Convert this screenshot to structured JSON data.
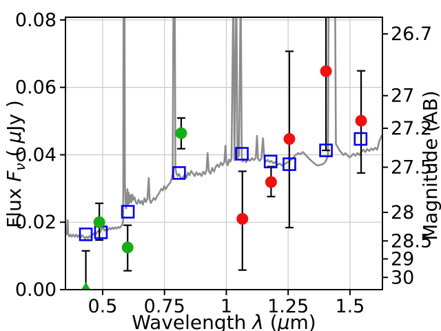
{
  "chart_data": {
    "type": "scatter",
    "title": "",
    "xlabel_parts": [
      {
        "t": "Wavelength "
      },
      {
        "t": "λ",
        "i": 1
      },
      {
        "t": " ("
      },
      {
        "t": "μ",
        "i": 1
      },
      {
        "t": "m)"
      }
    ],
    "ylabel_parts": [
      {
        "t": "Flux "
      },
      {
        "t": "F",
        "i": 1
      },
      {
        "t": "ν",
        "i": 1,
        "s": 1
      },
      {
        "t": " ( "
      },
      {
        "t": "μ",
        "i": 1
      },
      {
        "t": "Jy )"
      }
    ],
    "y2label": "Magnitude (AB)",
    "xlim": [
      0.3496,
      1.6312
    ],
    "ylim": [
      0,
      0.0808
    ],
    "grid": true,
    "legend": "none",
    "x_ticks": [
      {
        "v": 0.5,
        "label": "0.5"
      },
      {
        "v": 0.75,
        "label": "0.75"
      },
      {
        "v": 1.0,
        "label": "1"
      },
      {
        "v": 1.25,
        "label": "1.25"
      },
      {
        "v": 1.5,
        "label": "1.5"
      }
    ],
    "y_ticks": [
      {
        "v": 0.0,
        "label": "0.00"
      },
      {
        "v": 0.02,
        "label": "0.02"
      },
      {
        "v": 0.04,
        "label": "0.04"
      },
      {
        "v": 0.06,
        "label": "0.06"
      },
      {
        "v": 0.08,
        "label": "0.08"
      }
    ],
    "y2_ticks": [
      {
        "label": "26.7",
        "flux": 0.07585
      },
      {
        "label": "27",
        "flux": 0.05754
      },
      {
        "label": "27.2",
        "flux": 0.04786
      },
      {
        "label": "27.5",
        "flux": 0.03631
      },
      {
        "label": "28",
        "flux": 0.02291
      },
      {
        "label": "28.5",
        "flux": 0.01445
      },
      {
        "label": "29",
        "flux": 0.00912
      },
      {
        "label": "30",
        "flux": 0.00363
      }
    ],
    "colors": {
      "spectrum": "#8c8c8c",
      "grid": "#cccccc",
      "green": "#17ad17",
      "red": "#ee1111",
      "blue": "#0000ee",
      "errorbar": "#000000",
      "frame": "#000000"
    },
    "green_circles": [
      {
        "x": 0.4865,
        "y": 0.02,
        "lo": 0.0147,
        "hi": 0.0256
      },
      {
        "x": 0.601,
        "y": 0.0125,
        "lo": 0.0056,
        "hi": 0.0191
      },
      {
        "x": 0.8175,
        "y": 0.0464,
        "lo": 0.0418,
        "hi": 0.0509
      }
    ],
    "green_upper_limit": {
      "x": 0.432,
      "y": 0.0006,
      "hi": 0.0115
    },
    "blue_squares": [
      {
        "x": 0.432,
        "y": 0.0164
      },
      {
        "x": 0.493,
        "y": 0.017
      },
      {
        "x": 0.602,
        "y": 0.0231
      },
      {
        "x": 0.809,
        "y": 0.0346
      },
      {
        "x": 1.063,
        "y": 0.0403
      },
      {
        "x": 1.179,
        "y": 0.038
      },
      {
        "x": 1.255,
        "y": 0.0372
      },
      {
        "x": 1.403,
        "y": 0.0413
      },
      {
        "x": 1.543,
        "y": 0.0447
      }
    ],
    "red_circles": [
      {
        "x": 1.065,
        "y": 0.021,
        "lo": 0.0058,
        "hi": 0.0351
      },
      {
        "x": 1.181,
        "y": 0.0319,
        "lo": 0.0276,
        "hi": 0.0365
      },
      {
        "x": 1.255,
        "y": 0.0447,
        "lo": 0.0184,
        "hi": 0.0707
      },
      {
        "x": 1.403,
        "y": 0.0648,
        "lo": 0.0413,
        "hi": 0.082
      },
      {
        "x": 1.545,
        "y": 0.0501,
        "lo": 0.0346,
        "hi": 0.0649
      }
    ],
    "spectrum": [
      [
        0.352,
        0.0162
      ],
      [
        0.3555,
        0.0168
      ],
      [
        0.3585,
        0.0206
      ],
      [
        0.361,
        0.0163
      ],
      [
        0.365,
        0.0158
      ],
      [
        0.37,
        0.0163
      ],
      [
        0.375,
        0.0157
      ],
      [
        0.381,
        0.0163
      ],
      [
        0.387,
        0.0157
      ],
      [
        0.393,
        0.0163
      ],
      [
        0.399,
        0.0156
      ],
      [
        0.405,
        0.0161
      ],
      [
        0.411,
        0.0155
      ],
      [
        0.417,
        0.0161
      ],
      [
        0.423,
        0.0157
      ],
      [
        0.429,
        0.0151
      ],
      [
        0.435,
        0.0157
      ],
      [
        0.441,
        0.0153
      ],
      [
        0.447,
        0.0159
      ],
      [
        0.453,
        0.0155
      ],
      [
        0.459,
        0.0162
      ],
      [
        0.465,
        0.0167
      ],
      [
        0.471,
        0.0163
      ],
      [
        0.477,
        0.017
      ],
      [
        0.483,
        0.0174
      ],
      [
        0.489,
        0.0169
      ],
      [
        0.495,
        0.018
      ],
      [
        0.5,
        0.0191
      ],
      [
        0.504,
        0.0179
      ],
      [
        0.509,
        0.0175
      ],
      [
        0.515,
        0.0181
      ],
      [
        0.521,
        0.0177
      ],
      [
        0.527,
        0.0183
      ],
      [
        0.533,
        0.0179
      ],
      [
        0.539,
        0.0184
      ],
      [
        0.545,
        0.018
      ],
      [
        0.551,
        0.0185
      ],
      [
        0.557,
        0.0181
      ],
      [
        0.563,
        0.0186
      ],
      [
        0.569,
        0.0183
      ],
      [
        0.575,
        0.0189
      ],
      [
        0.58,
        0.0193
      ],
      [
        0.583,
        0.0207
      ],
      [
        0.5845,
        0.09
      ],
      [
        0.5885,
        0.09
      ],
      [
        0.59,
        0.0312
      ],
      [
        0.5925,
        0.0262
      ],
      [
        0.595,
        0.0241
      ],
      [
        0.5975,
        0.0266
      ],
      [
        0.6,
        0.0298
      ],
      [
        0.6025,
        0.0252
      ],
      [
        0.605,
        0.0288
      ],
      [
        0.608,
        0.0257
      ],
      [
        0.612,
        0.028
      ],
      [
        0.616,
        0.0259
      ],
      [
        0.62,
        0.0282
      ],
      [
        0.624,
        0.0266
      ],
      [
        0.629,
        0.0274
      ],
      [
        0.634,
        0.0259
      ],
      [
        0.639,
        0.0254
      ],
      [
        0.645,
        0.0267
      ],
      [
        0.651,
        0.0256
      ],
      [
        0.657,
        0.0263
      ],
      [
        0.663,
        0.0252
      ],
      [
        0.669,
        0.0271
      ],
      [
        0.675,
        0.026
      ],
      [
        0.681,
        0.027
      ],
      [
        0.6865,
        0.0331
      ],
      [
        0.69,
        0.0267
      ],
      [
        0.695,
        0.0257
      ],
      [
        0.701,
        0.0265
      ],
      [
        0.707,
        0.0272
      ],
      [
        0.713,
        0.0266
      ],
      [
        0.719,
        0.0276
      ],
      [
        0.725,
        0.0283
      ],
      [
        0.731,
        0.029
      ],
      [
        0.737,
        0.0299
      ],
      [
        0.743,
        0.0294
      ],
      [
        0.749,
        0.0307
      ],
      [
        0.755,
        0.0298
      ],
      [
        0.761,
        0.0306
      ],
      [
        0.767,
        0.0312
      ],
      [
        0.773,
        0.0317
      ],
      [
        0.779,
        0.0329
      ],
      [
        0.783,
        0.0346
      ],
      [
        0.7865,
        0.09
      ],
      [
        0.7915,
        0.09
      ],
      [
        0.794,
        0.036
      ],
      [
        0.798,
        0.0346
      ],
      [
        0.803,
        0.0337
      ],
      [
        0.809,
        0.0343
      ],
      [
        0.815,
        0.0333
      ],
      [
        0.821,
        0.0329
      ],
      [
        0.827,
        0.0336
      ],
      [
        0.833,
        0.0342
      ],
      [
        0.839,
        0.0333
      ],
      [
        0.845,
        0.0347
      ],
      [
        0.851,
        0.0339
      ],
      [
        0.858,
        0.0352
      ],
      [
        0.865,
        0.0344
      ],
      [
        0.872,
        0.0337
      ],
      [
        0.879,
        0.0348
      ],
      [
        0.886,
        0.034
      ],
      [
        0.893,
        0.0345
      ],
      [
        0.9,
        0.0337
      ],
      [
        0.907,
        0.035
      ],
      [
        0.914,
        0.0342
      ],
      [
        0.92,
        0.0354
      ],
      [
        0.9245,
        0.0405
      ],
      [
        0.929,
        0.0352
      ],
      [
        0.936,
        0.0344
      ],
      [
        0.943,
        0.0361
      ],
      [
        0.95,
        0.035
      ],
      [
        0.957,
        0.0364
      ],
      [
        0.964,
        0.0371
      ],
      [
        0.971,
        0.0364
      ],
      [
        0.978,
        0.0377
      ],
      [
        0.985,
        0.0369
      ],
      [
        0.992,
        0.0379
      ],
      [
        0.9965,
        0.0427
      ],
      [
        1.001,
        0.0375
      ],
      [
        1.006,
        0.0369
      ],
      [
        1.011,
        0.0386
      ],
      [
        1.016,
        0.0379
      ],
      [
        1.021,
        0.0389
      ],
      [
        1.0285,
        0.09
      ],
      [
        1.033,
        0.0384
      ],
      [
        1.0405,
        0.09
      ],
      [
        1.045,
        0.0391
      ],
      [
        1.051,
        0.0398
      ],
      [
        1.058,
        0.09
      ],
      [
        1.0625,
        0.0393
      ],
      [
        1.066,
        0.038
      ],
      [
        1.073,
        0.0387
      ],
      [
        1.08,
        0.0378
      ],
      [
        1.088,
        0.0388
      ],
      [
        1.096,
        0.0382
      ],
      [
        1.104,
        0.039
      ],
      [
        1.112,
        0.0384
      ],
      [
        1.119,
        0.0391
      ],
      [
        1.124,
        0.0456
      ],
      [
        1.128,
        0.0388
      ],
      [
        1.135,
        0.0382
      ],
      [
        1.142,
        0.039
      ],
      [
        1.1485,
        0.0449
      ],
      [
        1.154,
        0.0387
      ],
      [
        1.161,
        0.038
      ],
      [
        1.168,
        0.0385
      ],
      [
        1.175,
        0.0378
      ],
      [
        1.182,
        0.0382
      ],
      [
        1.19,
        0.0375
      ],
      [
        1.198,
        0.0378
      ],
      [
        1.207,
        0.037
      ],
      [
        1.216,
        0.0374
      ],
      [
        1.225,
        0.0368
      ],
      [
        1.234,
        0.0372
      ],
      [
        1.243,
        0.0376
      ],
      [
        1.252,
        0.0379
      ],
      [
        1.261,
        0.0385
      ],
      [
        1.27,
        0.0391
      ],
      [
        1.28,
        0.0399
      ],
      [
        1.29,
        0.0405
      ],
      [
        1.3,
        0.0402
      ],
      [
        1.31,
        0.0408
      ],
      [
        1.32,
        0.04
      ],
      [
        1.33,
        0.0392
      ],
      [
        1.34,
        0.0385
      ],
      [
        1.35,
        0.0378
      ],
      [
        1.36,
        0.0372
      ],
      [
        1.37,
        0.0368
      ],
      [
        1.38,
        0.037
      ],
      [
        1.39,
        0.0372
      ],
      [
        1.4,
        0.0378
      ],
      [
        1.408,
        0.0391
      ],
      [
        1.411,
        0.0402
      ],
      [
        1.414,
        0.09
      ],
      [
        1.4395,
        0.09
      ],
      [
        1.443,
        0.0432
      ],
      [
        1.45,
        0.0423
      ],
      [
        1.458,
        0.0413
      ],
      [
        1.466,
        0.0406
      ],
      [
        1.474,
        0.0399
      ],
      [
        1.482,
        0.0405
      ],
      [
        1.49,
        0.0398
      ],
      [
        1.498,
        0.0392
      ],
      [
        1.506,
        0.0397
      ],
      [
        1.514,
        0.0403
      ],
      [
        1.522,
        0.0397
      ],
      [
        1.53,
        0.0405
      ],
      [
        1.538,
        0.0399
      ],
      [
        1.546,
        0.0409
      ],
      [
        1.554,
        0.0415
      ],
      [
        1.562,
        0.0408
      ],
      [
        1.57,
        0.0417
      ],
      [
        1.578,
        0.0411
      ],
      [
        1.586,
        0.0419
      ],
      [
        1.594,
        0.0414
      ],
      [
        1.602,
        0.0421
      ],
      [
        1.61,
        0.0415
      ],
      [
        1.618,
        0.0439
      ],
      [
        1.626,
        0.0453
      ],
      [
        1.631,
        0.0459
      ]
    ]
  }
}
